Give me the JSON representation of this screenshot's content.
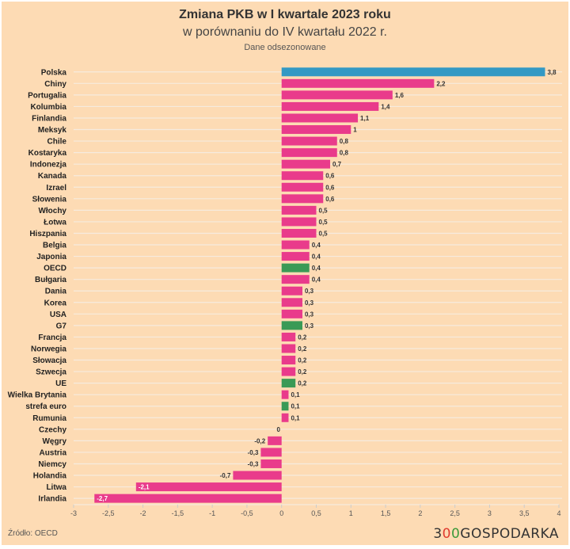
{
  "chart_data": {
    "type": "bar",
    "orientation": "horizontal",
    "title": "Zmiana PKB w I kwartale 2023 roku",
    "subtitle": "w porównaniu do IV kwartału 2022 r.",
    "note": "Dane odsezonowane",
    "xlim": [
      -3,
      4
    ],
    "xticks": [
      "-3",
      "-2,5",
      "-2",
      "-1,5",
      "-1",
      "-0,5",
      "0",
      "0,5",
      "1",
      "1,5",
      "2",
      "2,5",
      "3",
      "3,5",
      "4"
    ],
    "xtick_values": [
      -3,
      -2.5,
      -2,
      -1.5,
      -1,
      -0.5,
      0,
      0.5,
      1,
      1.5,
      2,
      2.5,
      3,
      3.5,
      4
    ],
    "grid": true,
    "colors": {
      "default": "#e93b8b",
      "highlight": "#3399c4",
      "aggregate": "#3a9a56"
    },
    "categories": [
      "Polska",
      "Chiny",
      "Portugalia",
      "Kolumbia",
      "Finlandia",
      "Meksyk",
      "Chile",
      "Kostaryka",
      "Indonezja",
      "Kanada",
      "Izrael",
      "Słowenia",
      "Włochy",
      "Łotwa",
      "Hiszpania",
      "Belgia",
      "Japonia",
      "OECD",
      "Bułgaria",
      "Dania",
      "Korea",
      "USA",
      "G7",
      "Francja",
      "Norwegia",
      "Słowacja",
      "Szwecja",
      "UE",
      "Wielka Brytania",
      "strefa euro",
      "Rumunia",
      "Czechy",
      "Węgry",
      "Austria",
      "Niemcy",
      "Holandia",
      "Litwa",
      "Irlandia"
    ],
    "values": [
      3.8,
      2.2,
      1.6,
      1.4,
      1.1,
      1,
      0.8,
      0.8,
      0.7,
      0.6,
      0.6,
      0.6,
      0.5,
      0.5,
      0.5,
      0.4,
      0.4,
      0.4,
      0.4,
      0.3,
      0.3,
      0.3,
      0.3,
      0.2,
      0.2,
      0.2,
      0.2,
      0.2,
      0.1,
      0.1,
      0.1,
      0,
      -0.2,
      -0.3,
      -0.3,
      -0.7,
      -2.1,
      -2.7
    ],
    "value_labels": [
      "3,8",
      "2,2",
      "1,6",
      "1,4",
      "1,1",
      "1",
      "0,8",
      "0,8",
      "0,7",
      "0,6",
      "0,6",
      "0,6",
      "0,5",
      "0,5",
      "0,5",
      "0,4",
      "0,4",
      "0,4",
      "0,4",
      "0,3",
      "0,3",
      "0,3",
      "0,3",
      "0,2",
      "0,2",
      "0,2",
      "0,2",
      "0,2",
      "0,1",
      "0,1",
      "0,1",
      "0",
      "-0,2",
      "-0,3",
      "-0,3",
      "-0,7",
      "-2,1",
      "-2,7"
    ],
    "bar_types": [
      "highlight",
      "default",
      "default",
      "default",
      "default",
      "default",
      "default",
      "default",
      "default",
      "default",
      "default",
      "default",
      "default",
      "default",
      "default",
      "default",
      "default",
      "aggregate",
      "default",
      "default",
      "default",
      "default",
      "aggregate",
      "default",
      "default",
      "default",
      "default",
      "aggregate",
      "default",
      "aggregate",
      "default",
      "default",
      "default",
      "default",
      "default",
      "default",
      "default",
      "default"
    ]
  },
  "footer": {
    "source": "Źródło: OECD",
    "logo_a": "3",
    "logo_b": "0",
    "logo_c": "0",
    "logo_d": "GOSPODARKA"
  }
}
